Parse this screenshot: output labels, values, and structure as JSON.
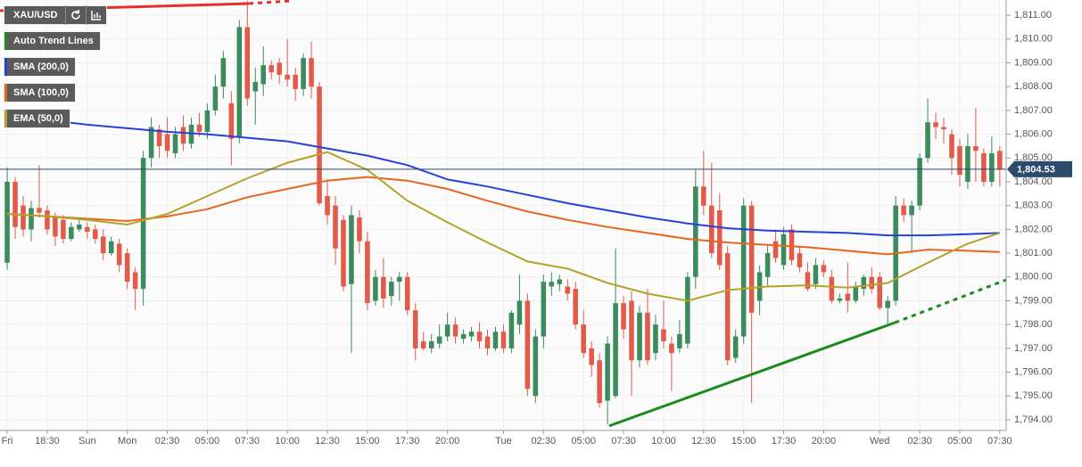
{
  "chart_data": {
    "type": "candlestick",
    "symbol": "XAU/USD",
    "up_color": "#3b8b5c",
    "down_color": "#e15b48",
    "open": [
      1800.6,
      1804.0,
      1803.0,
      1802.0,
      1802.9,
      1802.8,
      1802.5,
      1802.4,
      1801.6,
      1802.0,
      1802.1,
      1802.0,
      1801.7,
      1801.0,
      1801.4,
      1801.0,
      1800.2,
      1799.5,
      1805.0,
      1806.2,
      1806.0,
      1805.2,
      1806.3,
      1805.6,
      1806.4,
      1806.1,
      1807.0,
      1808.0,
      1807.3,
      1805.9,
      1810.5,
      1807.8,
      1808.1,
      1808.9,
      1809.0,
      1808.5,
      1808.5,
      1807.9,
      1809.2,
      1808.0,
      1803.4,
      1803.0,
      1802.4,
      1799.7,
      1802.5,
      1801.5,
      1799.0,
      1800.0,
      1799.2,
      1799.8,
      1800.0,
      1798.6,
      1797.3,
      1797.0,
      1797.2,
      1797.5,
      1798.0,
      1797.4,
      1797.5,
      1797.7,
      1797.5,
      1797.0,
      1797.7,
      1797.0,
      1798.0,
      1799.0,
      1795.0,
      1797.5,
      1799.6,
      1799.7,
      1799.6,
      1799.5,
      1798.0,
      1797.0,
      1796.5,
      1794.8,
      1795.0,
      1798.9,
      1799.0,
      1796.5,
      1798.5,
      1796.8,
      1797.8,
      1797.2,
      1797.0,
      1797.2,
      1800.0,
      1803.8,
      1803.0,
      1802.8,
      1801.0,
      1796.6,
      1797.5,
      1803.0,
      1799.0,
      1800.0,
      1801.5,
      1800.5,
      1802.0,
      1801.0,
      1800.2,
      1799.7,
      1800.5,
      1800.0,
      1799.0,
      1799.3,
      1799.0,
      1799.5,
      1800.0,
      1800.0,
      1798.7,
      1799.0,
      1803.0,
      1802.6,
      1803.0,
      1805.0,
      1806.5,
      1806.3,
      1806.0,
      1805.5,
      1804.0,
      1805.5,
      1805.2,
      1804.0,
      1805.3
    ],
    "high": [
      1804.6,
      1804.2,
      1803.4,
      1803.2,
      1804.7,
      1803.0,
      1802.7,
      1802.6,
      1802.3,
      1802.4,
      1802.3,
      1802.2,
      1802.0,
      1801.7,
      1801.6,
      1801.2,
      1800.4,
      1805.3,
      1806.7,
      1806.4,
      1806.7,
      1806.3,
      1806.8,
      1806.7,
      1806.9,
      1807.3,
      1808.5,
      1809.5,
      1807.8,
      1810.8,
      1811.6,
      1808.8,
      1809.7,
      1809.1,
      1809.2,
      1810.0,
      1808.8,
      1809.4,
      1809.9,
      1808.2,
      1804.0,
      1803.4,
      1802.6,
      1803.0,
      1802.8,
      1801.9,
      1800.3,
      1800.8,
      1800.0,
      1800.2,
      1800.2,
      1798.9,
      1797.7,
      1797.6,
      1798.0,
      1798.5,
      1798.3,
      1797.8,
      1797.9,
      1798.1,
      1797.8,
      1797.9,
      1798.0,
      1798.6,
      1800.1,
      1799.3,
      1797.8,
      1800.1,
      1800.2,
      1800.1,
      1799.9,
      1799.8,
      1798.6,
      1797.3,
      1796.8,
      1797.5,
      1801.2,
      1799.2,
      1799.4,
      1798.8,
      1799.5,
      1798.4,
      1799.0,
      1797.5,
      1798.2,
      1800.2,
      1804.5,
      1805.3,
      1804.8,
      1803.5,
      1801.3,
      1797.8,
      1803.3,
      1803.2,
      1800.5,
      1801.3,
      1802.0,
      1802.1,
      1802.2,
      1801.3,
      1800.6,
      1800.8,
      1800.7,
      1800.3,
      1799.3,
      1800.6,
      1799.8,
      1800.1,
      1800.4,
      1800.2,
      1799.2,
      1803.4,
      1803.3,
      1803.2,
      1805.2,
      1807.5,
      1806.9,
      1806.7,
      1806.2,
      1805.8,
      1806.0,
      1807.1,
      1805.4,
      1805.9,
      1805.5
    ],
    "low": [
      1800.3,
      1801.6,
      1801.7,
      1801.5,
      1802.5,
      1801.8,
      1801.3,
      1801.4,
      1801.5,
      1801.9,
      1801.6,
      1801.4,
      1800.7,
      1800.9,
      1800.2,
      1799.5,
      1798.6,
      1798.8,
      1804.6,
      1805.0,
      1805.0,
      1805.0,
      1805.3,
      1805.4,
      1805.9,
      1805.8,
      1806.8,
      1807.5,
      1804.7,
      1805.6,
      1807.2,
      1806.4,
      1807.6,
      1808.3,
      1808.1,
      1808.0,
      1807.4,
      1807.6,
      1807.5,
      1803.0,
      1802.2,
      1800.5,
      1799.4,
      1796.8,
      1801.0,
      1798.6,
      1798.8,
      1798.7,
      1798.8,
      1799.0,
      1798.4,
      1796.5,
      1796.9,
      1796.8,
      1797.0,
      1797.3,
      1797.2,
      1797.2,
      1797.3,
      1797.0,
      1796.7,
      1796.9,
      1796.8,
      1796.8,
      1797.6,
      1795.0,
      1794.7,
      1797.0,
      1799.2,
      1799.4,
      1799.0,
      1797.8,
      1796.6,
      1795.8,
      1794.5,
      1793.8,
      1794.9,
      1797.4,
      1795.0,
      1796.2,
      1796.3,
      1796.5,
      1797.0,
      1795.2,
      1796.8,
      1797.0,
      1799.5,
      1802.6,
      1800.8,
      1800.3,
      1796.3,
      1796.4,
      1797.2,
      1794.7,
      1798.4,
      1799.6,
      1800.6,
      1800.3,
      1800.5,
      1800.2,
      1799.4,
      1799.5,
      1800.0,
      1798.9,
      1798.9,
      1798.5,
      1798.9,
      1799.2,
      1799.3,
      1798.6,
      1798.0,
      1798.8,
      1802.3,
      1801.0,
      1802.8,
      1804.8,
      1805.8,
      1805.6,
      1804.3,
      1803.8,
      1803.7,
      1804.0,
      1803.8,
      1803.8,
      1803.8
    ],
    "close": [
      1804.0,
      1802.1,
      1802.0,
      1802.9,
      1802.7,
      1802.0,
      1801.7,
      1801.6,
      1802.1,
      1802.2,
      1801.9,
      1801.6,
      1801.0,
      1801.5,
      1800.5,
      1799.8,
      1799.5,
      1805.0,
      1806.3,
      1805.5,
      1805.3,
      1806.0,
      1805.6,
      1806.4,
      1806.1,
      1807.0,
      1808.0,
      1809.2,
      1805.8,
      1810.5,
      1807.5,
      1808.2,
      1808.9,
      1808.6,
      1808.5,
      1808.3,
      1807.9,
      1809.2,
      1808.0,
      1803.1,
      1802.6,
      1801.2,
      1799.6,
      1802.6,
      1801.5,
      1798.9,
      1800.0,
      1799.1,
      1799.8,
      1800.0,
      1798.6,
      1797.0,
      1797.0,
      1797.3,
      1797.5,
      1798.0,
      1797.5,
      1797.6,
      1797.7,
      1797.3,
      1797.0,
      1797.7,
      1797.0,
      1798.5,
      1799.0,
      1795.3,
      1797.5,
      1799.8,
      1799.8,
      1799.9,
      1799.3,
      1798.0,
      1796.8,
      1796.3,
      1794.7,
      1797.2,
      1798.9,
      1797.8,
      1796.5,
      1798.5,
      1796.5,
      1798.0,
      1797.3,
      1796.8,
      1797.6,
      1800.0,
      1803.8,
      1803.0,
      1801.0,
      1800.5,
      1796.5,
      1797.5,
      1803.0,
      1798.5,
      1800.2,
      1801.0,
      1800.8,
      1801.8,
      1800.7,
      1800.4,
      1799.5,
      1800.5,
      1800.2,
      1799.0,
      1799.1,
      1799.0,
      1799.6,
      1800.0,
      1799.5,
      1798.7,
      1799.0,
      1803.0,
      1802.6,
      1803.0,
      1805.0,
      1806.5,
      1806.3,
      1806.2,
      1805.0,
      1804.3,
      1805.5,
      1805.3,
      1804.0,
      1805.2,
      1804.53
    ],
    "xlim": [
      -0.9,
      124.8
    ],
    "xticks": [
      {
        "value": 0,
        "label": "Fri"
      },
      {
        "value": 5,
        "label": "18:30"
      },
      {
        "value": 10,
        "label": "Sun"
      },
      {
        "value": 15,
        "label": "Mon"
      },
      {
        "value": 20,
        "label": "02:30"
      },
      {
        "value": 25,
        "label": "05:00"
      },
      {
        "value": 30,
        "label": "07:30"
      },
      {
        "value": 35,
        "label": "10:00"
      },
      {
        "value": 40,
        "label": "12:30"
      },
      {
        "value": 45,
        "label": "15:00"
      },
      {
        "value": 50,
        "label": "17:30"
      },
      {
        "value": 55,
        "label": "20:00"
      },
      {
        "value": 62,
        "label": "Tue"
      },
      {
        "value": 67,
        "label": "02:30"
      },
      {
        "value": 72,
        "label": "05:00"
      },
      {
        "value": 77,
        "label": "07:30"
      },
      {
        "value": 82,
        "label": "10:00"
      },
      {
        "value": 87,
        "label": "12:30"
      },
      {
        "value": 92,
        "label": "15:00"
      },
      {
        "value": 97,
        "label": "17:30"
      },
      {
        "value": 102,
        "label": "20:00"
      },
      {
        "value": 109,
        "label": "Wed"
      },
      {
        "value": 114,
        "label": "02:30"
      },
      {
        "value": 119,
        "label": "05:00"
      },
      {
        "value": 124,
        "label": "07:30"
      }
    ],
    "ylim": [
      1793.55,
      1811.64
    ],
    "yticks": [
      {
        "value": 1794,
        "label": "1,794.00"
      },
      {
        "value": 1795,
        "label": "1,795.00"
      },
      {
        "value": 1796,
        "label": "1,796.00"
      },
      {
        "value": 1797,
        "label": "1,797.00"
      },
      {
        "value": 1798,
        "label": "1,798.00"
      },
      {
        "value": 1799,
        "label": "1,799.00"
      },
      {
        "value": 1800,
        "label": "1,800.00"
      },
      {
        "value": 1801,
        "label": "1,801.00"
      },
      {
        "value": 1802,
        "label": "1,802.00"
      },
      {
        "value": 1803,
        "label": "1,803.00"
      },
      {
        "value": 1804,
        "label": "1,804.00"
      },
      {
        "value": 1805,
        "label": "1,805.00"
      },
      {
        "value": 1806,
        "label": "1,806.00"
      },
      {
        "value": 1807,
        "label": "1,807.00"
      },
      {
        "value": 1808,
        "label": "1,808.00"
      },
      {
        "value": 1809,
        "label": "1,809.00"
      },
      {
        "value": 1810,
        "label": "1,810.00"
      },
      {
        "value": 1811,
        "label": "1,811.00"
      }
    ],
    "grid": true,
    "series": [
      {
        "name": "SMA (200,0)",
        "color": "#2740d8",
        "x": [
          0,
          5,
          10,
          15,
          20,
          25,
          30,
          35,
          40,
          45,
          50,
          55,
          60,
          65,
          70,
          75,
          80,
          85,
          90,
          95,
          100,
          105,
          110,
          115,
          120,
          124
        ],
        "values": [
          1806.75,
          1806.6,
          1806.4,
          1806.25,
          1806.1,
          1806.0,
          1805.85,
          1805.7,
          1805.4,
          1805.1,
          1804.7,
          1804.1,
          1803.8,
          1803.45,
          1803.1,
          1802.8,
          1802.5,
          1802.25,
          1802.05,
          1801.95,
          1801.9,
          1801.85,
          1801.75,
          1801.75,
          1801.8,
          1801.85
        ]
      },
      {
        "name": "SMA (100,0)",
        "color": "#e5671f",
        "x": [
          0,
          5,
          10,
          15,
          20,
          25,
          30,
          35,
          40,
          45,
          50,
          55,
          60,
          65,
          70,
          75,
          80,
          85,
          90,
          95,
          100,
          105,
          110,
          115,
          120,
          124
        ],
        "values": [
          1802.65,
          1802.55,
          1802.45,
          1802.35,
          1802.55,
          1802.85,
          1803.35,
          1803.7,
          1804.05,
          1804.2,
          1804.05,
          1803.7,
          1803.2,
          1802.75,
          1802.4,
          1802.1,
          1801.85,
          1801.6,
          1801.45,
          1801.35,
          1801.25,
          1801.1,
          1800.95,
          1801.15,
          1801.1,
          1801.05
        ]
      },
      {
        "name": "EMA (50,0)",
        "color": "#b5a22a",
        "x": [
          0,
          5,
          10,
          15,
          20,
          25,
          30,
          35,
          40,
          45,
          50,
          55,
          60,
          65,
          70,
          75,
          80,
          85,
          90,
          95,
          100,
          105,
          110,
          115,
          120,
          124
        ],
        "values": [
          1802.65,
          1802.55,
          1802.4,
          1802.2,
          1802.65,
          1803.4,
          1804.15,
          1804.8,
          1805.25,
          1804.5,
          1803.2,
          1802.3,
          1801.45,
          1800.65,
          1800.35,
          1799.75,
          1799.3,
          1799.0,
          1799.45,
          1799.6,
          1799.65,
          1799.55,
          1799.75,
          1800.6,
          1801.4,
          1801.85
        ]
      }
    ],
    "trend_lines": {
      "name": "Auto Trend Lines",
      "color": "#1c8a1c",
      "lines": [
        {
          "color": "#e8302a",
          "x": [
            -0.9,
            30.2
          ],
          "values": [
            1811.19,
            1811.49
          ],
          "dashed_x": [
            30.2,
            35.3
          ],
          "dashed_values": [
            1811.49,
            1811.6
          ]
        },
        {
          "color": "#1c8a1c",
          "x": [
            75.2,
            110.9
          ],
          "values": [
            1793.74,
            1798.08
          ],
          "dashed_x": [
            110.9,
            124.8
          ],
          "dashed_values": [
            1798.08,
            1799.88
          ]
        }
      ]
    },
    "last_price": {
      "value": 1804.53,
      "label": "1,804.53",
      "color": "#2c4a6b"
    }
  }
}
